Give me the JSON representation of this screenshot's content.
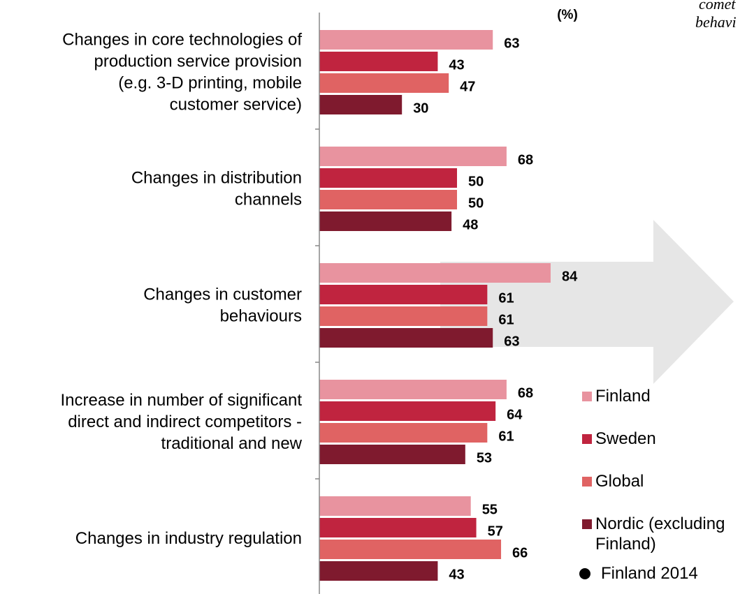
{
  "chart_data": {
    "type": "bar",
    "orientation": "horizontal",
    "unit_label": "(%)",
    "side_text": [
      "comet",
      "behavi"
    ],
    "categories": [
      [
        "Changes in core technologies of",
        "production service provision",
        "(e.g. 3-D printing, mobile",
        "customer service)"
      ],
      [
        "Changes in distribution",
        "channels"
      ],
      [
        "Changes in customer",
        "behaviours"
      ],
      [
        "Increase in number of significant",
        "direct and indirect competitors -",
        "traditional and new"
      ],
      [
        "Changes in industry regulation"
      ]
    ],
    "series": [
      {
        "name": "Finland",
        "color": "#e8939f",
        "values": [
          63,
          68,
          84,
          68,
          55
        ]
      },
      {
        "name": "Sweden",
        "color": "#c0243f",
        "values": [
          43,
          50,
          61,
          64,
          57
        ]
      },
      {
        "name": "Global",
        "color": "#e06363",
        "values": [
          47,
          50,
          61,
          61,
          66
        ]
      },
      {
        "name": "Nordic (excluding Finland)",
        "color": "#7f1a2e",
        "values": [
          30,
          48,
          63,
          53,
          43
        ]
      }
    ],
    "markers": [
      {
        "name": "Finland 2014",
        "color": "#000000"
      }
    ]
  }
}
